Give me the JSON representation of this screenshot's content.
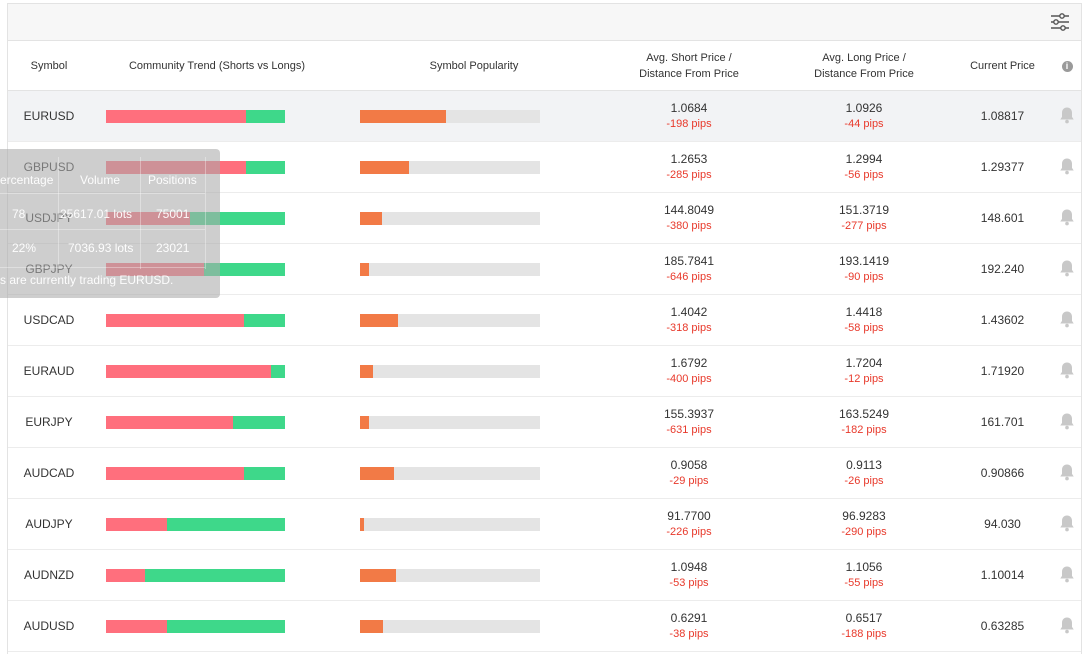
{
  "headers": {
    "symbol": "Symbol",
    "trend": "Community Trend (Shorts vs Longs)",
    "popularity": "Symbol Popularity",
    "avg_short_l1": "Avg. Short Price /",
    "avg_short_l2": "Distance From Price",
    "avg_long_l1": "Avg. Long Price /",
    "avg_long_l2": "Distance From Price",
    "current": "Current Price",
    "info_icon": "info-icon"
  },
  "toolbar": {
    "filter_icon": "sliders-icon"
  },
  "colors": {
    "short": "#ff6f7d",
    "long": "#3ed88a",
    "popularity": "#f27a46",
    "pips": "#e8392b"
  },
  "rows": [
    {
      "symbol": "EURUSD",
      "short_pct": 78,
      "popularity_pct": 48,
      "avg_short": "1.0684",
      "short_pips": "-198 pips",
      "avg_long": "1.0926",
      "long_pips": "-44 pips",
      "current": "1.08817"
    },
    {
      "symbol": "GBPUSD",
      "short_pct": 78,
      "popularity_pct": 27,
      "avg_short": "1.2653",
      "short_pips": "-285 pips",
      "avg_long": "1.2994",
      "long_pips": "-56 pips",
      "current": "1.29377"
    },
    {
      "symbol": "USDJPY",
      "short_pct": 47,
      "popularity_pct": 12,
      "avg_short": "144.8049",
      "short_pips": "-380 pips",
      "avg_long": "151.3719",
      "long_pips": "-277 pips",
      "current": "148.601"
    },
    {
      "symbol": "GBPJPY",
      "short_pct": 55,
      "popularity_pct": 5,
      "avg_short": "185.7841",
      "short_pips": "-646 pips",
      "avg_long": "193.1419",
      "long_pips": "-90 pips",
      "current": "192.240"
    },
    {
      "symbol": "USDCAD",
      "short_pct": 77,
      "popularity_pct": 21,
      "avg_short": "1.4042",
      "short_pips": "-318 pips",
      "avg_long": "1.4418",
      "long_pips": "-58 pips",
      "current": "1.43602"
    },
    {
      "symbol": "EURAUD",
      "short_pct": 92,
      "popularity_pct": 7,
      "avg_short": "1.6792",
      "short_pips": "-400 pips",
      "avg_long": "1.7204",
      "long_pips": "-12 pips",
      "current": "1.71920"
    },
    {
      "symbol": "EURJPY",
      "short_pct": 71,
      "popularity_pct": 5,
      "avg_short": "155.3937",
      "short_pips": "-631 pips",
      "avg_long": "163.5249",
      "long_pips": "-182 pips",
      "current": "161.701"
    },
    {
      "symbol": "AUDCAD",
      "short_pct": 77,
      "popularity_pct": 19,
      "avg_short": "0.9058",
      "short_pips": "-29 pips",
      "avg_long": "0.9113",
      "long_pips": "-26 pips",
      "current": "0.90866"
    },
    {
      "symbol": "AUDJPY",
      "short_pct": 34,
      "popularity_pct": 2,
      "avg_short": "91.7700",
      "short_pips": "-226 pips",
      "avg_long": "96.9283",
      "long_pips": "-290 pips",
      "current": "94.030"
    },
    {
      "symbol": "AUDNZD",
      "short_pct": 22,
      "popularity_pct": 20,
      "avg_short": "1.0948",
      "short_pips": "-53 pips",
      "avg_long": "1.1056",
      "long_pips": "-55 pips",
      "current": "1.10014"
    },
    {
      "symbol": "AUDUSD",
      "short_pct": 34,
      "popularity_pct": 13,
      "avg_short": "0.6291",
      "short_pips": "-38 pips",
      "avg_long": "0.6517",
      "long_pips": "-188 pips",
      "current": "0.63285"
    }
  ],
  "tooltip": {
    "col_percentage": "ercentage",
    "col_volume": "Volume",
    "col_positions": "Positions",
    "r1_percentage": "78",
    "r1_volume": "25617.01 lots",
    "r1_positions": "75001",
    "r2_percentage": "22%",
    "r2_volume": "7036.93 lots",
    "r2_positions": "23021",
    "footer": "s are currently trading EURUSD."
  }
}
